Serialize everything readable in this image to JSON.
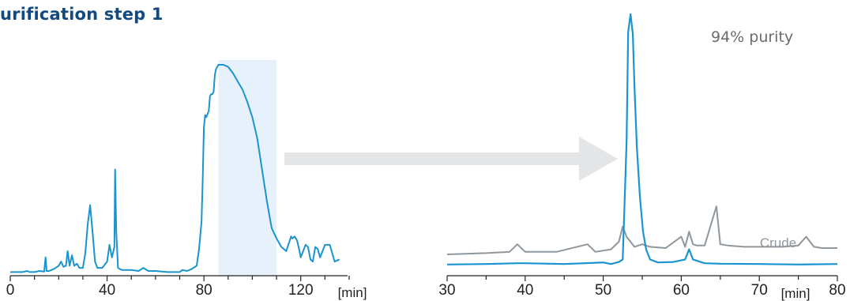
{
  "title": "urification step 1",
  "annotation": "94% purity",
  "colors": {
    "trace": "#1a94d0",
    "crude": "#8f979d",
    "highlight": "#e6f1fb",
    "arrow": "#e4e5e7",
    "title": "#124a80"
  },
  "chart_data": [
    {
      "type": "line",
      "title": "urification step 1",
      "xlabel": "[min]",
      "ylabel": "",
      "xlim": [
        0,
        140
      ],
      "ylim": [
        0,
        100
      ],
      "ticks": [
        "0",
        "40",
        "80",
        "120"
      ],
      "highlight_x": [
        86,
        110
      ],
      "series": [
        {
          "name": "",
          "x": [
            0,
            5,
            7,
            8,
            10,
            12,
            14,
            14.6,
            15,
            16,
            18,
            20,
            21,
            22,
            23,
            23.7,
            24.5,
            25.5,
            26.4,
            27.5,
            28.6,
            30,
            31,
            32,
            33,
            34,
            35,
            36,
            38,
            40,
            41,
            42,
            43,
            43.3,
            43.8,
            44.5,
            46,
            50,
            53,
            55,
            57,
            60,
            65,
            70,
            71,
            73,
            75,
            77,
            78,
            79,
            79.5,
            80,
            80.5,
            81,
            82,
            82.5,
            83,
            83.5,
            84,
            84.5,
            85,
            85.5,
            86,
            88,
            90,
            92,
            94,
            96,
            98,
            100,
            102,
            104,
            106,
            108,
            110,
            112,
            114,
            116,
            116.5,
            117.5,
            118.5,
            119.5,
            120,
            121,
            122,
            123,
            124,
            125,
            126,
            127,
            128,
            130,
            132,
            134,
            136
          ],
          "values": [
            1,
            1,
            1.5,
            1,
            1,
            1.5,
            1.2,
            8,
            1.5,
            1.5,
            2.5,
            4,
            6,
            3.5,
            4,
            11,
            4,
            9,
            4,
            5,
            3,
            3,
            10,
            24,
            33,
            20,
            6,
            3,
            3,
            6,
            14,
            8,
            13,
            50,
            20,
            3,
            2,
            2,
            1.5,
            3,
            1.5,
            1.5,
            1,
            1,
            2,
            1.5,
            2.5,
            4,
            12,
            25,
            45,
            70,
            76,
            75,
            78,
            85,
            86,
            86,
            87,
            95,
            98,
            99,
            100,
            100,
            99,
            96,
            92,
            88,
            82,
            75,
            65,
            50,
            35,
            22,
            17,
            13,
            11,
            18,
            17,
            18,
            16,
            11,
            8,
            11,
            14,
            13,
            7,
            6,
            13,
            12,
            8,
            14,
            14,
            6,
            7
          ]
        }
      ]
    },
    {
      "type": "line",
      "title": "",
      "xlabel": "[min]",
      "ylabel": "",
      "xlim": [
        30,
        80
      ],
      "ylim": [
        0,
        100
      ],
      "ticks": [
        "30",
        "40",
        "50",
        "60",
        "70",
        "80"
      ],
      "series": [
        {
          "name": "",
          "x": [
            30,
            35,
            39,
            40,
            45,
            50,
            51,
            52,
            52.5,
            53,
            53.2,
            53.5,
            53.8,
            54,
            54.3,
            54.7,
            55.1,
            55.5,
            56,
            57,
            59,
            60.5,
            61,
            61.5,
            63,
            65,
            70,
            75,
            80
          ],
          "values": [
            1,
            1.2,
            1.5,
            1.5,
            1.2,
            1.8,
            1.2,
            2,
            3,
            50,
            93,
            100,
            92,
            72,
            48,
            28,
            14,
            7,
            3,
            1.8,
            2,
            3,
            7,
            3,
            1.5,
            1.3,
            1.2,
            1,
            1.2
          ]
        },
        {
          "name": "Crude",
          "x": [
            30,
            33,
            35,
            38,
            39,
            40,
            44,
            48,
            49,
            51,
            52,
            52.5,
            53,
            54,
            55,
            56,
            58,
            60,
            60.5,
            61,
            61.5,
            62,
            63,
            64.5,
            65,
            66,
            68,
            70,
            73,
            75,
            76,
            77,
            78,
            80
          ],
          "values": [
            5,
            5.3,
            5.5,
            6,
            9,
            6,
            6,
            9,
            6,
            7,
            10,
            16,
            12,
            8,
            9,
            8,
            7.5,
            12,
            8,
            14,
            9,
            8.5,
            8.5,
            24,
            9,
            8.5,
            8,
            8,
            8,
            8.5,
            12,
            8,
            7.5,
            7.5
          ]
        }
      ],
      "labels": [
        "Crude"
      ]
    }
  ]
}
